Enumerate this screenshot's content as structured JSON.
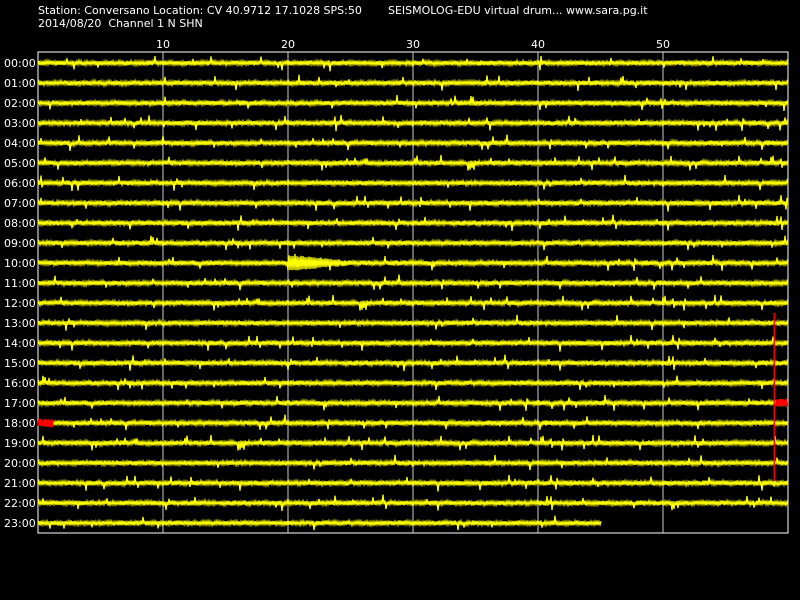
{
  "header": {
    "station_line": "Station: Conversano Location: CV 40.9712 17.1028 SPS:50",
    "date_line": "2014/08/20  Channel 1 N SHN",
    "program_line": "SEISMOLOG-EDU virtual drum... www.sara.pg.it"
  },
  "colors": {
    "background": "#000000",
    "trace": "#ffff00",
    "event_trace": "#ff0000",
    "grid": "#ffffff"
  },
  "chart_data": {
    "type": "line",
    "title": "",
    "xlabel": "",
    "ylabel": "",
    "x_ticks": [
      "10",
      "20",
      "30",
      "40",
      "50"
    ],
    "x_tick_values": [
      10,
      20,
      30,
      40,
      50
    ],
    "xlim": [
      0,
      60
    ],
    "grid": true,
    "rows": [
      "00:00",
      "01:00",
      "02:00",
      "03:00",
      "04:00",
      "05:00",
      "06:00",
      "07:00",
      "08:00",
      "09:00",
      "10:00",
      "11:00",
      "12:00",
      "13:00",
      "14:00",
      "15:00",
      "16:00",
      "17:00",
      "18:00",
      "19:00",
      "20:00",
      "21:00",
      "22:00",
      "23:00"
    ],
    "last_row_end_minute": 45.1,
    "events": [
      {
        "row": "10:00",
        "start_minute": 20.0,
        "end_minute": 25.0,
        "amplitude": "medium"
      },
      {
        "row": "17:00",
        "start_minute": 59.0,
        "end_minute": 60.0,
        "amplitude": "large",
        "highlight": true
      },
      {
        "row": "18:00",
        "start_minute": 0.0,
        "end_minute": 1.2,
        "amplitude": "large",
        "highlight": true
      }
    ]
  }
}
